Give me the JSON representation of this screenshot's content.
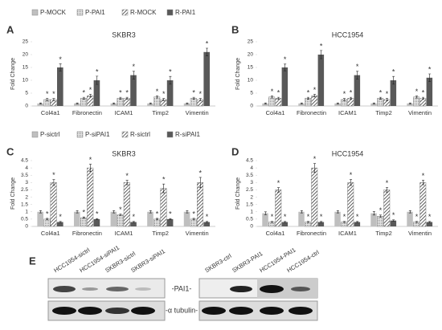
{
  "chart_data": [
    {
      "type": "bar",
      "panel_label": "A",
      "title": "SKBR3",
      "y_label": "Fold Change",
      "legend": true,
      "significance_marker": "*",
      "categories": [
        "Col4a1",
        "Fibronectin",
        "ICAM1",
        "Timp2",
        "Vimentin"
      ],
      "series": [
        {
          "name": "P-MOCK",
          "color": "#bfbfbf",
          "pattern": "solid",
          "values": [
            1,
            1,
            1,
            1,
            1
          ],
          "errors": [
            0.2,
            0.2,
            0.2,
            0.2,
            0.2
          ],
          "significant": [
            false,
            false,
            false,
            false,
            false
          ]
        },
        {
          "name": "P-PAI1",
          "color": "#d9d9d9",
          "pattern": "dots",
          "values": [
            2.5,
            3,
            3,
            3.5,
            3
          ],
          "errors": [
            0.4,
            0.4,
            0.4,
            0.4,
            0.4
          ],
          "significant": [
            true,
            true,
            true,
            true,
            true
          ]
        },
        {
          "name": "R-MOCK",
          "color": "#404040",
          "pattern": "hatch",
          "values": [
            2.5,
            4,
            3,
            2.5,
            2.5
          ],
          "errors": [
            0.4,
            0.5,
            0.4,
            0.4,
            0.4
          ],
          "significant": [
            true,
            true,
            true,
            true,
            true
          ]
        },
        {
          "name": "R-PAI1",
          "color": "#595959",
          "pattern": "solid",
          "values": [
            15,
            10,
            12,
            10,
            21
          ],
          "errors": [
            1.4,
            1.6,
            1.5,
            1.5,
            1.5
          ],
          "significant": [
            true,
            true,
            true,
            true,
            true
          ]
        }
      ],
      "ylim": [
        0,
        25
      ],
      "yticks": [
        0,
        5,
        10,
        15,
        20,
        25
      ]
    },
    {
      "type": "bar",
      "panel_label": "B",
      "title": "HCC1954",
      "y_label": "Fold Change",
      "legend": false,
      "significance_marker": "*",
      "categories": [
        "Col4a1",
        "Fibronectin",
        "ICAM1",
        "Timp2",
        "Vimentin"
      ],
      "series": [
        {
          "color": "#bfbfbf",
          "pattern": "solid",
          "values": [
            1,
            1,
            1,
            1,
            1
          ],
          "errors": [
            0.2,
            0.2,
            0.2,
            0.2,
            0.2
          ],
          "significant": [
            false,
            false,
            false,
            false,
            false
          ]
        },
        {
          "color": "#d9d9d9",
          "pattern": "dots",
          "values": [
            3.5,
            3,
            2.5,
            3,
            3.5
          ],
          "errors": [
            0.4,
            0.4,
            0.4,
            0.4,
            0.4
          ],
          "significant": [
            true,
            true,
            true,
            true,
            true
          ]
        },
        {
          "color": "#404040",
          "pattern": "hatch",
          "values": [
            3,
            4,
            3,
            2.5,
            3
          ],
          "errors": [
            0.4,
            0.5,
            0.4,
            0.4,
            0.4
          ],
          "significant": [
            true,
            true,
            true,
            true,
            true
          ]
        },
        {
          "color": "#595959",
          "pattern": "solid",
          "values": [
            15,
            20,
            12,
            10,
            11
          ],
          "errors": [
            1.3,
            1.6,
            1.5,
            1.5,
            1.5
          ],
          "significant": [
            true,
            true,
            true,
            true,
            true
          ]
        }
      ],
      "ylim": [
        0,
        25
      ],
      "yticks": [
        0,
        5,
        10,
        15,
        20,
        25
      ]
    },
    {
      "type": "bar",
      "panel_label": "C",
      "title": "SKBR3",
      "y_label": "Fold Change",
      "legend": true,
      "significance_marker": "*",
      "categories": [
        "Col4a1",
        "Fibronectin",
        "ICAM1",
        "Timp2",
        "Vimentin"
      ],
      "series": [
        {
          "name": "P-sictrl",
          "color": "#bfbfbf",
          "pattern": "solid",
          "values": [
            1,
            1,
            1,
            1,
            1
          ],
          "errors": [
            0.08,
            0.08,
            0.08,
            0.08,
            0.08
          ],
          "significant": [
            false,
            false,
            false,
            false,
            false
          ]
        },
        {
          "name": "P-siPAI1",
          "color": "#d9d9d9",
          "pattern": "dots",
          "values": [
            0.5,
            0.6,
            0.8,
            0.5,
            0.5
          ],
          "errors": [
            0.05,
            0.05,
            0.05,
            0.05,
            0.05
          ],
          "significant": [
            true,
            true,
            true,
            true,
            true
          ]
        },
        {
          "name": "R-sictrl",
          "color": "#404040",
          "pattern": "hatch",
          "values": [
            3,
            4,
            3,
            2.6,
            3
          ],
          "errors": [
            0.2,
            0.25,
            0.15,
            0.3,
            0.35
          ],
          "significant": [
            true,
            true,
            true,
            true,
            true
          ]
        },
        {
          "name": "R-siPAI1",
          "color": "#595959",
          "pattern": "solid",
          "values": [
            0.3,
            0.5,
            0.3,
            0.5,
            0.3
          ],
          "errors": [
            0.04,
            0.04,
            0.04,
            0.04,
            0.04
          ],
          "significant": [
            true,
            true,
            true,
            true,
            true
          ]
        }
      ],
      "ylim": [
        0,
        4.5
      ],
      "yticks": [
        0,
        0.5,
        1,
        1.5,
        2,
        2.5,
        3,
        3.5,
        4,
        4.5
      ]
    },
    {
      "type": "bar",
      "panel_label": "D",
      "title": "HCC1954",
      "y_label": "Fold Change",
      "legend": false,
      "significance_marker": "*",
      "categories": [
        "Col4a1",
        "Fibronectin",
        "ICAM1",
        "Timp2",
        "Vimentin"
      ],
      "series": [
        {
          "color": "#bfbfbf",
          "pattern": "solid",
          "values": [
            0.9,
            1,
            1,
            0.9,
            1
          ],
          "errors": [
            0.1,
            0.08,
            0.08,
            0.12,
            0.08
          ],
          "significant": [
            false,
            false,
            false,
            false,
            false
          ]
        },
        {
          "color": "#d9d9d9",
          "pattern": "dots",
          "values": [
            0.3,
            0.3,
            0.3,
            0.7,
            0.3
          ],
          "errors": [
            0.04,
            0.04,
            0.04,
            0.08,
            0.04
          ],
          "significant": [
            true,
            true,
            true,
            true,
            true
          ]
        },
        {
          "color": "#404040",
          "pattern": "hatch",
          "values": [
            2.5,
            4,
            3,
            2.5,
            3
          ],
          "errors": [
            0.15,
            0.3,
            0.2,
            0.15,
            0.15
          ],
          "significant": [
            true,
            true,
            true,
            true,
            true
          ]
        },
        {
          "color": "#595959",
          "pattern": "solid",
          "values": [
            0.3,
            0.3,
            0.3,
            0.4,
            0.3
          ],
          "errors": [
            0.04,
            0.04,
            0.04,
            0.05,
            0.04
          ],
          "significant": [
            true,
            true,
            true,
            true,
            true
          ]
        }
      ],
      "ylim": [
        0,
        4.5
      ],
      "yticks": [
        0,
        0.5,
        1,
        1.5,
        2,
        2.5,
        3,
        3.5,
        4,
        4.5
      ]
    }
  ],
  "blot": {
    "panel_label": "E",
    "left_lanes": [
      "HCC1954-sictrl",
      "HCC1954-siPAI1",
      "SKBR3-sictrl",
      "SKBR3-siPAI1"
    ],
    "right_lanes": [
      "SKBR3-ctrl",
      "SKBR3-PAI1",
      "HCC1954-PAI1",
      "HCC1954-ctrl"
    ],
    "band_labels": [
      "-PAI1-",
      "-α tubulin-"
    ]
  }
}
